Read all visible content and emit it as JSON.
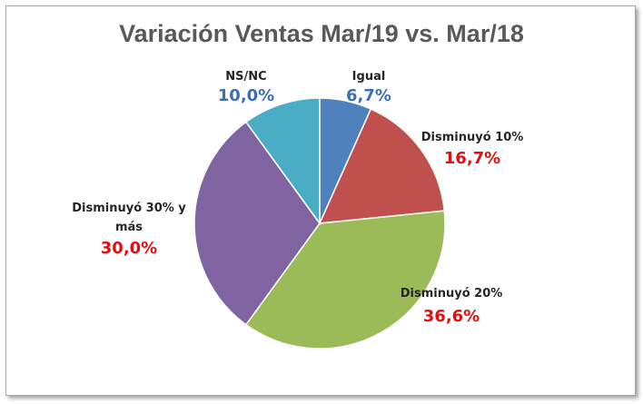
{
  "chart_data": {
    "type": "pie",
    "title": "Variación Ventas Mar/19 vs. Mar/18",
    "slices": [
      {
        "label": "Igual",
        "value_label": "6,7%",
        "value": 6.7,
        "color": "#4f81bd",
        "label_color": "#3d6fb4"
      },
      {
        "label": "Disminuyó 10%",
        "value_label": "16,7%",
        "value": 16.7,
        "color": "#c0504d",
        "label_color": "#e01010"
      },
      {
        "label": "Disminuyó 20%",
        "value_label": "36,6%",
        "value": 36.6,
        "color": "#9bbb59",
        "label_color": "#e01010"
      },
      {
        "label": "Disminuyó 30% y más",
        "value_label": "30,0%",
        "value": 30.0,
        "color": "#8064a2",
        "label_color": "#e01010"
      },
      {
        "label": "NS/NC",
        "value_label": "10,0%",
        "value": 10.0,
        "color": "#4bacc6",
        "label_color": "#3d6fb4"
      }
    ]
  }
}
